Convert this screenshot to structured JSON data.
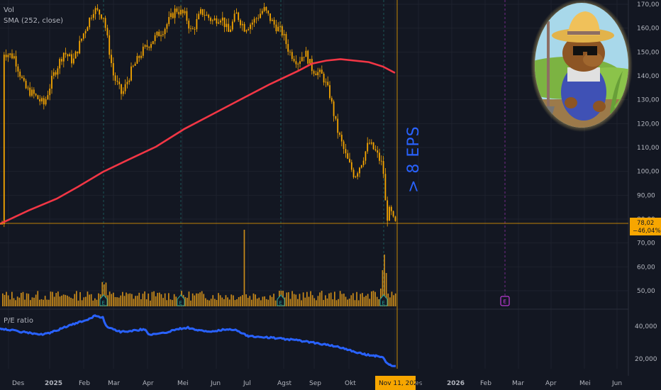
{
  "legend": {
    "vol": "Vol",
    "sma": "SMA (252, close)",
    "pe": "P/E ratio"
  },
  "annotation": "> 8 EPS",
  "last_price": {
    "value": "78,02",
    "change": "−46,04%",
    "color": "#f7a600"
  },
  "crosshair_date": "Nov 11, 2025",
  "colors": {
    "background": "#131722",
    "candle": "#f7a600",
    "volume": "#c98a1a",
    "sma": "#f23645",
    "pe": "#2962ff",
    "annotation": "#2962ff",
    "earnings": "#26a69a",
    "earnings_future": "#e040fb",
    "grid": "#1e222d"
  },
  "price_axis": [
    "170,00",
    "160,00",
    "150,00",
    "140,00",
    "130,00",
    "120,00",
    "110,00",
    "100,00",
    "90,00",
    "80,00",
    "70,00",
    "60,00",
    "50,00"
  ],
  "pe_axis": [
    "40,000",
    "20,000"
  ],
  "x_axis": [
    "Des",
    "2025",
    "Feb",
    "Mar",
    "Apr",
    "Mei",
    "Jun",
    "Jul",
    "Agst",
    "Sep",
    "Okt",
    "Nov 11, 2025",
    "es",
    "2026",
    "Feb",
    "Mar",
    "Apr",
    "Mei",
    "Jun"
  ],
  "earnings_markers": [
    "E",
    "E",
    "E",
    "E"
  ],
  "future_earnings_marker": "E",
  "avatar_icon": "capybara-farmer-avatar",
  "chart_data": [
    {
      "type": "candlestick",
      "series": [
        {
          "name": "Vol",
          "x": [
            "Des",
            "2025",
            "Feb",
            "Mar",
            "Apr",
            "Mei",
            "Jun",
            "Jul",
            "Agst",
            "Sep",
            "Okt",
            "Nov 11, 2025"
          ],
          "y": [
            145,
            130,
            165,
            140,
            150,
            168,
            162,
            166,
            152,
            138,
            103,
            78.02
          ]
        },
        {
          "name": "SMA (252, close)",
          "x": [
            "Des",
            "2025",
            "Feb",
            "Mar",
            "Apr",
            "Mei",
            "Jun",
            "Jul",
            "Agst",
            "Sep",
            "Okt",
            "Nov 11, 2025"
          ],
          "y": [
            78,
            88,
            96,
            104,
            112,
            121,
            129,
            137,
            143,
            146,
            147,
            145
          ]
        }
      ],
      "ylim": [
        45,
        175
      ],
      "last_value": 78.02,
      "last_change_percent": -46.04
    },
    {
      "type": "line",
      "series": [
        {
          "name": "P/E ratio",
          "x": [
            "Des",
            "2025",
            "Feb",
            "Mar",
            "Apr",
            "Mei",
            "Jun",
            "Jul",
            "Agst",
            "Sep",
            "Okt",
            "Nov 11, 2025"
          ],
          "y": [
            40000,
            36000,
            46000,
            40000,
            38000,
            40000,
            40000,
            40000,
            34000,
            30000,
            24000,
            16000
          ]
        }
      ],
      "ylim": [
        14000,
        48000
      ]
    }
  ]
}
